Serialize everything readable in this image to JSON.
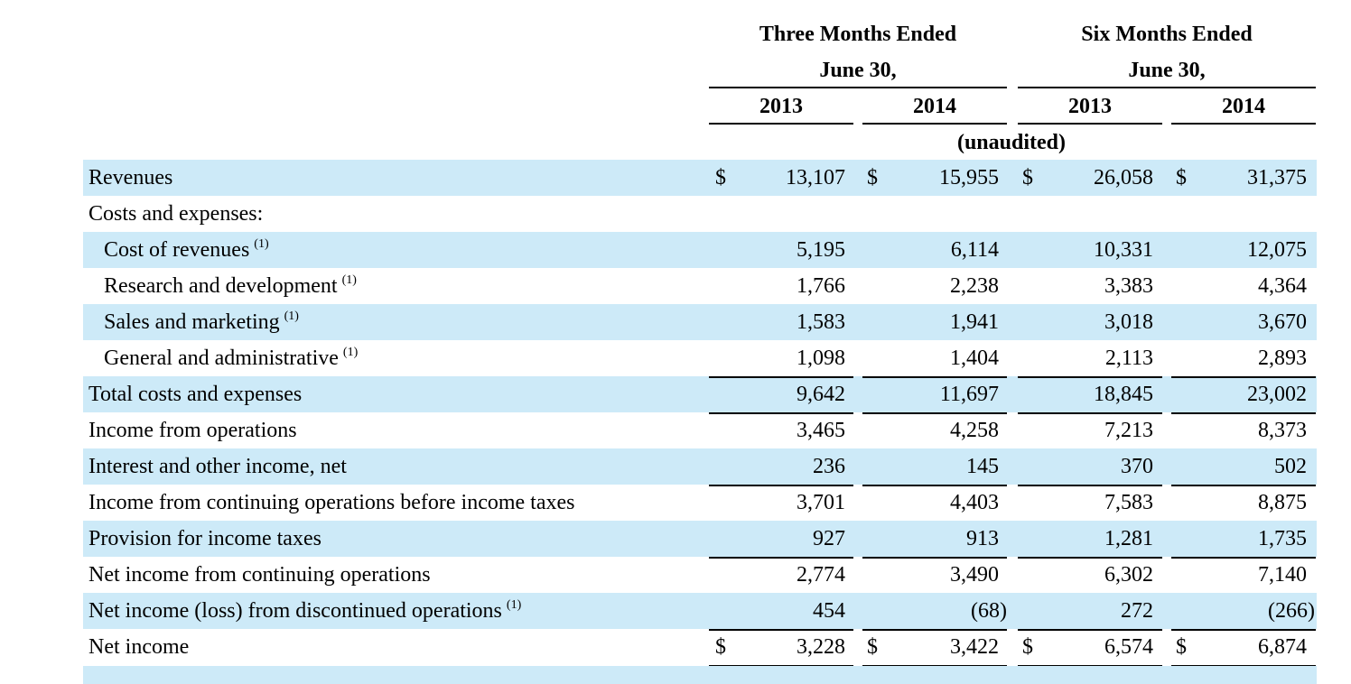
{
  "header": {
    "three_months": "Three Months Ended",
    "six_months": "Six Months Ended",
    "period_end": "June 30,",
    "years": [
      "2013",
      "2014",
      "2013",
      "2014"
    ],
    "unaudited": "(unaudited)"
  },
  "rows": [
    {
      "label": "Revenues",
      "sup": "",
      "cur": "$",
      "values": [
        "13,107",
        "15,955",
        "26,058",
        "31,375"
      ]
    },
    {
      "label": "Costs and expenses:",
      "sup": "",
      "cur": "",
      "values": [
        "",
        "",
        "",
        ""
      ]
    },
    {
      "label": "Cost of revenues",
      "sup": "(1)",
      "cur": "",
      "values": [
        "5,195",
        "6,114",
        "10,331",
        "12,075"
      ]
    },
    {
      "label": "Research and development",
      "sup": "(1)",
      "cur": "",
      "values": [
        "1,766",
        "2,238",
        "3,383",
        "4,364"
      ]
    },
    {
      "label": "Sales and marketing",
      "sup": "(1)",
      "cur": "",
      "values": [
        "1,583",
        "1,941",
        "3,018",
        "3,670"
      ]
    },
    {
      "label": "General and administrative",
      "sup": "(1)",
      "cur": "",
      "values": [
        "1,098",
        "1,404",
        "2,113",
        "2,893"
      ]
    },
    {
      "label": "Total costs and expenses",
      "sup": "",
      "cur": "",
      "values": [
        "9,642",
        "11,697",
        "18,845",
        "23,002"
      ]
    },
    {
      "label": "Income from operations",
      "sup": "",
      "cur": "",
      "values": [
        "3,465",
        "4,258",
        "7,213",
        "8,373"
      ]
    },
    {
      "label": "Interest and other income, net",
      "sup": "",
      "cur": "",
      "values": [
        "236",
        "145",
        "370",
        "502"
      ]
    },
    {
      "label": "Income from continuing operations before income taxes",
      "sup": "",
      "cur": "",
      "values": [
        "3,701",
        "4,403",
        "7,583",
        "8,875"
      ]
    },
    {
      "label": "Provision for income taxes",
      "sup": "",
      "cur": "",
      "values": [
        "927",
        "913",
        "1,281",
        "1,735"
      ]
    },
    {
      "label": "Net income from continuing operations",
      "sup": "",
      "cur": "",
      "values": [
        "2,774",
        "3,490",
        "6,302",
        "7,140"
      ]
    },
    {
      "label": "Net income (loss) from discontinued operations",
      "sup": "(1)",
      "cur": "",
      "values": [
        "454",
        "(68)",
        "272",
        "(266)"
      ]
    },
    {
      "label": "Net income",
      "sup": "",
      "cur": "$",
      "values": [
        "3,228",
        "3,422",
        "6,574",
        "6,874"
      ]
    }
  ],
  "colors": {
    "row_shade": "#cdeaf8",
    "text": "#000000"
  }
}
